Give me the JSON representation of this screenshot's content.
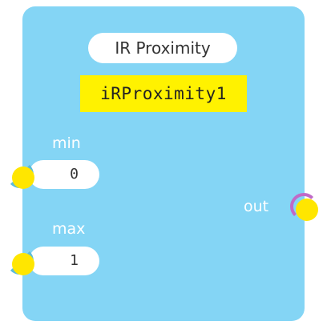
{
  "colors": {
    "card_background": "#84d5f5",
    "id_box_background": "#fff200",
    "port_fill": "#ffe600",
    "input_port_ring": "#5dbcd9",
    "output_port_ring": "#c06ac8"
  },
  "node": {
    "title": "IR Proximity",
    "id": "iRProximity1"
  },
  "inputs": [
    {
      "label": "min",
      "value": "0"
    },
    {
      "label": "max",
      "value": "1"
    }
  ],
  "outputs": [
    {
      "label": "out"
    }
  ]
}
